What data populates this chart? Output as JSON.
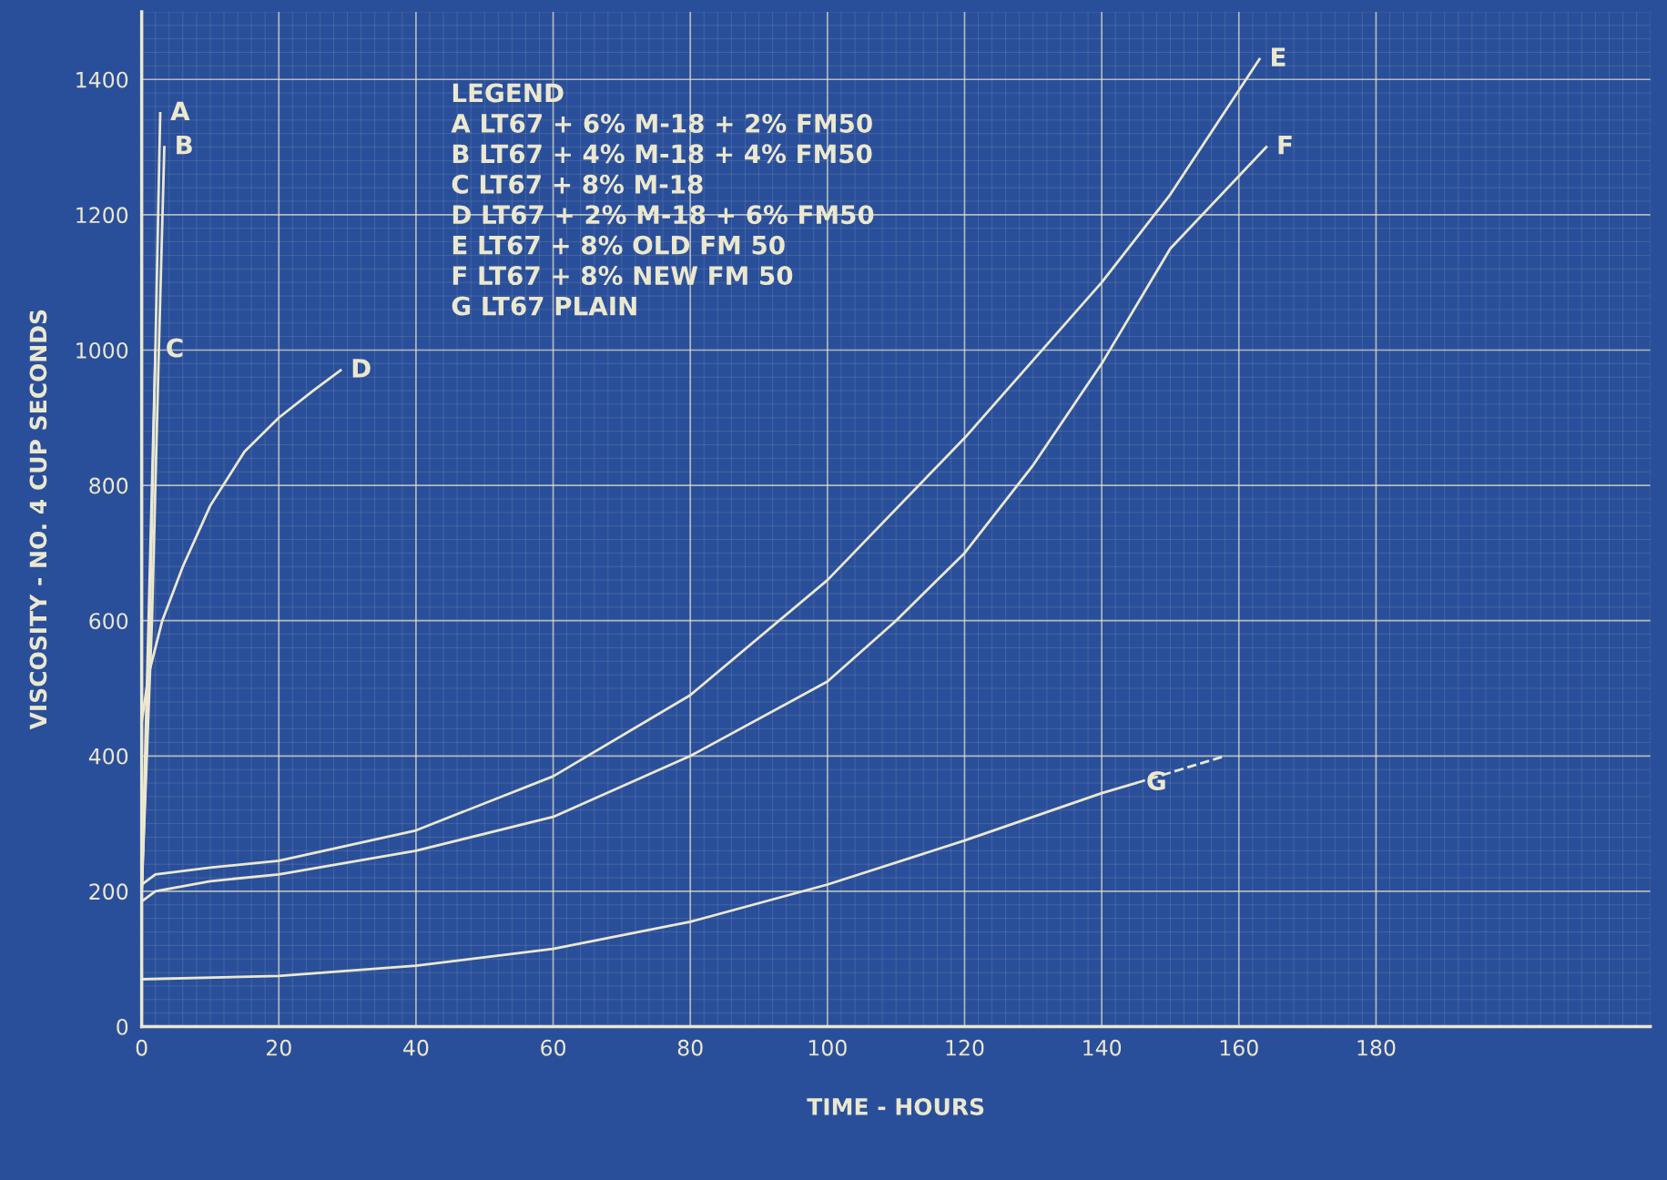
{
  "chart_data": {
    "type": "line",
    "xlabel": "TIME - HOURS",
    "ylabel": "VISCOSITY - NO. 4 CUP SECONDS",
    "xlim": [
      0,
      220
    ],
    "ylim": [
      0,
      1500
    ],
    "xticks": [
      0,
      20,
      40,
      60,
      80,
      100,
      120,
      140,
      160,
      180
    ],
    "yticks": [
      0,
      200,
      400,
      600,
      800,
      1000,
      1200,
      1400
    ],
    "grid": true,
    "legend": false,
    "marker": "none",
    "line_style": "solid",
    "series": [
      {
        "name": "A",
        "color": "#ebe8cf",
        "x": [
          0,
          1,
          2,
          2.7
        ],
        "values": [
          200,
          500,
          1000,
          1350
        ]
      },
      {
        "name": "B",
        "color": "#ebe8cf",
        "x": [
          0,
          1.5,
          2.5,
          3.3
        ],
        "values": [
          200,
          600,
          1000,
          1300
        ]
      },
      {
        "name": "C",
        "color": "#ebe8cf",
        "x": [
          0,
          1,
          2
        ],
        "values": [
          200,
          600,
          1000
        ]
      },
      {
        "name": "D",
        "color": "#ebe8cf",
        "x": [
          0,
          1,
          3,
          6,
          10,
          15,
          20,
          25,
          29
        ],
        "values": [
          450,
          520,
          600,
          680,
          770,
          850,
          900,
          940,
          970
        ]
      },
      {
        "name": "E",
        "color": "#ebe8cf",
        "x": [
          0,
          2,
          10,
          20,
          40,
          60,
          80,
          100,
          120,
          140,
          150,
          163
        ],
        "values": [
          210,
          225,
          235,
          245,
          290,
          370,
          490,
          660,
          870,
          1100,
          1230,
          1430
        ]
      },
      {
        "name": "F",
        "color": "#ebe8cf",
        "x": [
          0,
          2,
          10,
          20,
          40,
          60,
          80,
          100,
          110,
          120,
          130,
          140,
          150,
          164
        ],
        "values": [
          185,
          200,
          215,
          225,
          260,
          310,
          400,
          510,
          600,
          700,
          830,
          980,
          1150,
          1300
        ]
      },
      {
        "name": "G",
        "color": "#ebe8cf",
        "x": [
          0,
          20,
          40,
          60,
          80,
          100,
          120,
          140,
          145
        ],
        "values": [
          70,
          75,
          90,
          115,
          155,
          210,
          275,
          345,
          360
        ]
      },
      {
        "color": "#ebe8cf",
        "line_style": "dashed",
        "x": [
          145,
          158
        ],
        "values": [
          360,
          400
        ]
      }
    ],
    "annotations": [
      "LEGEND",
      "A LT67 + 6% M-18 + 2% FM50",
      "B LT67 + 4% M-18 + 4% FM50",
      "C LT67 + 8% M-18",
      "D LT67 + 2% M-18 + 6% FM50",
      "E LT67 + 8% OLD FM 50",
      "F LT67 + 8% NEW FM 50",
      "G LT67 PLAIN"
    ]
  }
}
